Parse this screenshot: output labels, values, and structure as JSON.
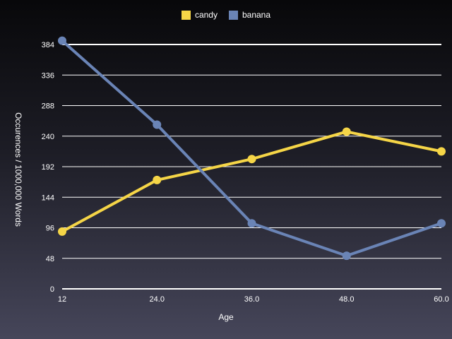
{
  "chart_data": {
    "type": "line",
    "title": "",
    "xlabel": "Age",
    "ylabel": "Occurences / 1000,000 Words",
    "x": [
      12,
      24,
      36,
      48,
      60
    ],
    "x_tick_labels": [
      "12",
      "24.0",
      "36.0",
      "48.0",
      "60.0"
    ],
    "xlim": [
      12,
      60
    ],
    "ylim": [
      0,
      384
    ],
    "y_ticks": [
      0,
      48,
      96,
      144,
      192,
      240,
      288,
      336,
      384
    ],
    "y_tick_labels": [
      "0",
      "48",
      "96",
      "144",
      "192",
      "240",
      "288",
      "336",
      "384"
    ],
    "grid": "horizontal",
    "legend_position": "top-center",
    "series": [
      {
        "name": "candy",
        "color": "#f5d547",
        "values": [
          90,
          171,
          204,
          247,
          216
        ]
      },
      {
        "name": "banana",
        "color": "#6a84b6",
        "values": [
          390,
          258,
          103,
          52,
          103
        ]
      }
    ]
  }
}
